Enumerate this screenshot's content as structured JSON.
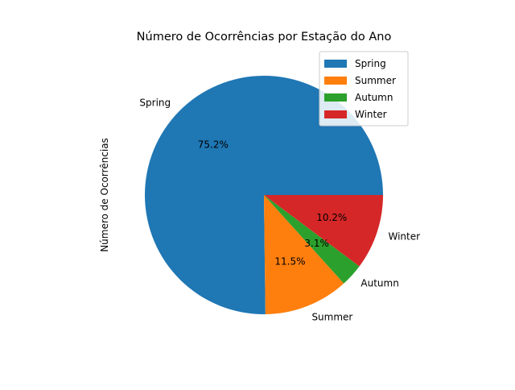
{
  "chart_data": {
    "type": "pie",
    "title": "Número de Ocorrências por Estação do Ano",
    "ylabel": "Número de Ocorrências",
    "xlabel": "",
    "legend_position": "top-right",
    "slices": [
      {
        "label": "Spring",
        "percent": 75.2,
        "pct_label": "75.2%",
        "color": "#1f77b4"
      },
      {
        "label": "Summer",
        "percent": 11.5,
        "pct_label": "11.5%",
        "color": "#ff7f0e"
      },
      {
        "label": "Autumn",
        "percent": 3.1,
        "pct_label": "3.1%",
        "color": "#2ca02c"
      },
      {
        "label": "Winter",
        "percent": 10.2,
        "pct_label": "10.2%",
        "color": "#d62728"
      }
    ]
  }
}
